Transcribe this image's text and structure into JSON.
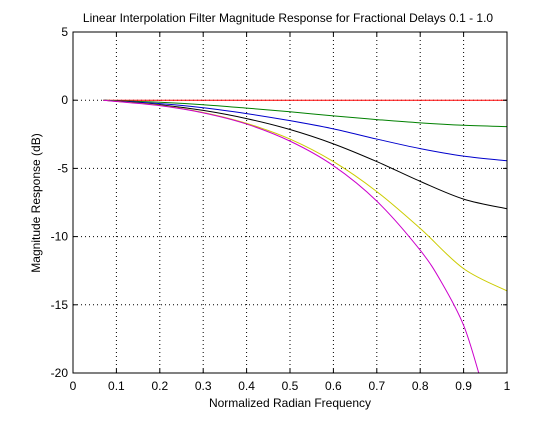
{
  "chart_data": {
    "type": "line",
    "title": "Linear Interpolation Filter Magnitude Response for Fractional Delays 0.1 - 1.0",
    "xlabel": "Normalized Radian Frequency",
    "ylabel": "Magnitude Response (dB)",
    "xlim": [
      0,
      1
    ],
    "ylim": [
      -20,
      5
    ],
    "xticks": [
      0,
      0.1,
      0.2,
      0.3,
      0.4,
      0.5,
      0.6,
      0.7,
      0.8,
      0.9,
      1
    ],
    "xtick_labels": [
      "0",
      "0.1",
      "0.2",
      "0.3",
      "0.4",
      "0.5",
      "0.6",
      "0.7",
      "0.8",
      "0.9",
      "1"
    ],
    "yticks": [
      5,
      0,
      -5,
      -10,
      -15,
      -20
    ],
    "ytick_labels": [
      "5",
      "0",
      "-5",
      "-10",
      "-15",
      "-20"
    ],
    "grid": true,
    "x_start": 0.07,
    "series": [
      {
        "color": "#ff0000",
        "x": [
          0.07,
          0.1,
          0.2,
          0.3,
          0.4,
          0.5,
          0.6,
          0.7,
          0.8,
          0.9,
          1.0
        ],
        "y": [
          0,
          0,
          0,
          0,
          0,
          0,
          0,
          0,
          0,
          0,
          0
        ]
      },
      {
        "color": "#008000",
        "x": [
          0.07,
          0.1,
          0.2,
          0.3,
          0.4,
          0.5,
          0.6,
          0.7,
          0.8,
          0.9,
          1.0
        ],
        "y": [
          0,
          -0.04,
          -0.15,
          -0.33,
          -0.58,
          -0.85,
          -1.15,
          -1.42,
          -1.66,
          -1.84,
          -1.94
        ]
      },
      {
        "color": "#0000cc",
        "x": [
          0.07,
          0.1,
          0.2,
          0.3,
          0.4,
          0.5,
          0.6,
          0.7,
          0.8,
          0.9,
          1.0
        ],
        "y": [
          0,
          -0.06,
          -0.25,
          -0.55,
          -0.98,
          -1.5,
          -2.1,
          -2.85,
          -3.55,
          -4.1,
          -4.44
        ]
      },
      {
        "color": "#000000",
        "x": [
          0.07,
          0.1,
          0.2,
          0.3,
          0.4,
          0.5,
          0.6,
          0.7,
          0.8,
          0.9,
          1.0
        ],
        "y": [
          0,
          -0.08,
          -0.33,
          -0.75,
          -1.35,
          -2.15,
          -3.2,
          -4.5,
          -5.95,
          -7.25,
          -7.96
        ]
      },
      {
        "color": "#cccc00",
        "x": [
          0.07,
          0.1,
          0.2,
          0.3,
          0.4,
          0.5,
          0.6,
          0.7,
          0.8,
          0.9,
          1.0
        ],
        "y": [
          0,
          -0.09,
          -0.38,
          -0.9,
          -1.7,
          -2.85,
          -4.5,
          -6.7,
          -9.4,
          -12.35,
          -13.98
        ]
      },
      {
        "color": "#cc00cc",
        "x": [
          0.07,
          0.1,
          0.2,
          0.3,
          0.4,
          0.5,
          0.6,
          0.7,
          0.8,
          0.85,
          0.9,
          0.935
        ],
        "y": [
          0,
          -0.1,
          -0.4,
          -0.93,
          -1.75,
          -3.0,
          -4.8,
          -7.4,
          -11.0,
          -13.4,
          -16.5,
          -20.0
        ]
      }
    ]
  }
}
